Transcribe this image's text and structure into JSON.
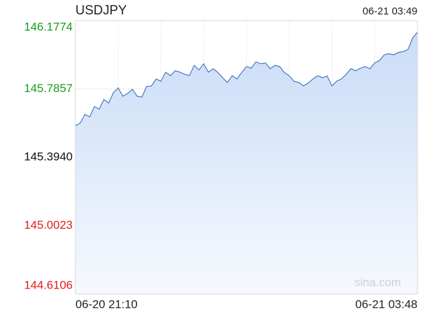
{
  "chart_data": {
    "type": "line",
    "title": "USDJPY",
    "timestamp": "06-21 03:49",
    "watermark": "sina.com",
    "xlabels": [
      "06-20 21:10",
      "06-21 03:48"
    ],
    "ylim": [
      144.6106,
      146.1774
    ],
    "yticks": [
      {
        "value": 144.6106,
        "label": "144.6106"
      },
      {
        "value": 145.0023,
        "label": "145.0023"
      },
      {
        "value": 145.394,
        "label": "145.3940"
      },
      {
        "value": 145.7857,
        "label": "145.7857"
      },
      {
        "value": 146.1774,
        "label": "146.1774"
      }
    ],
    "ytick_colors": [
      "#e0201b",
      "#e0201b",
      "#111111",
      "#1a9c1a",
      "#1a9c1a"
    ],
    "grid": true,
    "series": [
      {
        "name": "USDJPY",
        "color": "#3b6cc0",
        "values": [
          145.575,
          145.59,
          145.64,
          145.626,
          145.685,
          145.67,
          145.725,
          145.705,
          145.764,
          145.792,
          145.744,
          145.76,
          145.784,
          145.744,
          145.74,
          145.8,
          145.803,
          145.843,
          145.83,
          145.882,
          145.862,
          145.89,
          145.882,
          145.87,
          145.862,
          145.921,
          145.895,
          145.93,
          145.882,
          145.902,
          145.88,
          145.85,
          145.823,
          145.862,
          145.843,
          145.88,
          145.914,
          145.905,
          145.941,
          145.93,
          145.935,
          145.902,
          145.921,
          145.914,
          145.88,
          145.862,
          145.83,
          145.823,
          145.803,
          145.82,
          145.843,
          145.862,
          145.85,
          145.86,
          145.803,
          145.83,
          145.843,
          145.87,
          145.902,
          145.89,
          145.905,
          145.914,
          145.902,
          145.935,
          145.949,
          145.981,
          145.988,
          145.981,
          145.995,
          146.0,
          146.012,
          146.079,
          146.11
        ]
      }
    ]
  }
}
